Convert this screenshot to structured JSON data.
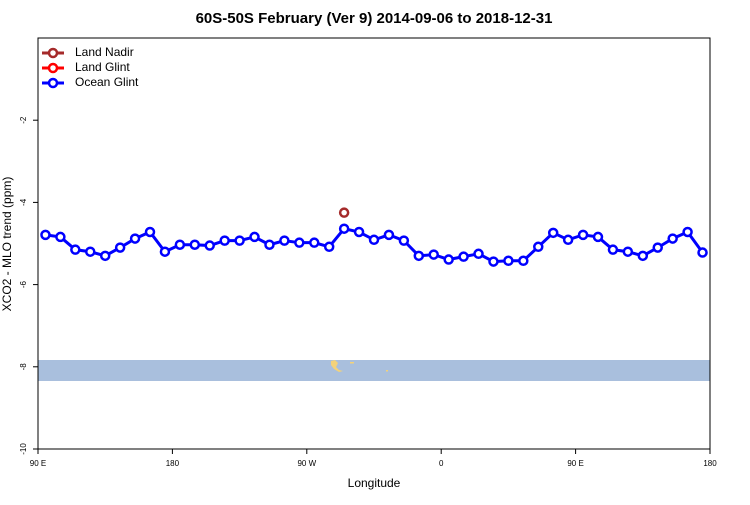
{
  "chart_data": {
    "type": "line",
    "title": "60S-50S February (Ver 9)   2014-09-06 to 2018-12-31",
    "xlabel": "Longitude",
    "ylabel": "XCO2 - MLO trend (ppm)",
    "xlim": [
      90,
      540
    ],
    "xticks": [
      {
        "value": 90,
        "label": "90 E"
      },
      {
        "value": 180,
        "label": "180"
      },
      {
        "value": 270,
        "label": "90 W"
      },
      {
        "value": 360,
        "label": "0"
      },
      {
        "value": 450,
        "label": "90 E"
      },
      {
        "value": 540,
        "label": "180"
      }
    ],
    "ylim": [
      -10,
      0
    ],
    "yticks": [
      -10,
      -8,
      -6,
      -4,
      -2
    ],
    "legend": "top-left",
    "series": [
      {
        "name": "Land Nadir",
        "color": "#a52a2a",
        "x": [
          295
        ],
        "values": [
          -4.25
        ]
      },
      {
        "name": "Land Glint",
        "color": "#ff0000",
        "x": [],
        "values": []
      },
      {
        "name": "Ocean Glint",
        "color": "#0000ff",
        "x": [
          95,
          105,
          115,
          125,
          135,
          145,
          155,
          165,
          175,
          185,
          195,
          205,
          215,
          225,
          235,
          245,
          255,
          265,
          275,
          285,
          295,
          305,
          315,
          325,
          335,
          345,
          355,
          365,
          375,
          385,
          395,
          405,
          415,
          425,
          435,
          445,
          455,
          465,
          475,
          485,
          495,
          505,
          515,
          525,
          535
        ],
        "values": [
          -4.79,
          -4.84,
          -5.15,
          -5.2,
          -5.3,
          -5.1,
          -4.88,
          -4.72,
          -5.2,
          -5.03,
          -5.03,
          -5.05,
          -4.93,
          -4.93,
          -4.84,
          -5.03,
          -4.93,
          -4.98,
          -4.98,
          -5.08,
          -4.64,
          -4.72,
          -4.91,
          -4.79,
          -4.93,
          -5.3,
          -5.27,
          -5.39,
          -5.32,
          -5.25,
          -5.44,
          -5.42,
          -5.42,
          -5.08,
          -4.74,
          -4.91,
          -4.79,
          -4.84,
          -5.15,
          -5.2,
          -5.3,
          -5.1,
          -4.88,
          -4.72,
          -5.22
        ]
      }
    ]
  }
}
